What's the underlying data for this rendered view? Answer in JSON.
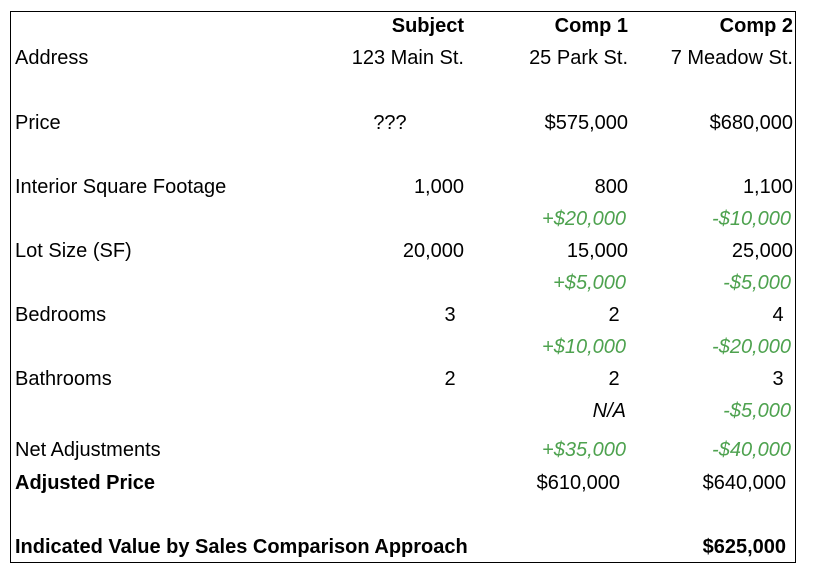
{
  "columns": {
    "subject": "Subject",
    "comp1": "Comp 1",
    "comp2": "Comp 2"
  },
  "address": {
    "label": "Address",
    "subject": "123 Main St.",
    "comp1": "25 Park St.",
    "comp2": "7 Meadow St."
  },
  "price": {
    "label": "Price",
    "subject": "???",
    "comp1": "$575,000",
    "comp2": "$680,000"
  },
  "sqft": {
    "label": "Interior Square Footage",
    "subject": "1,000",
    "comp1": "800",
    "comp2": "1,100",
    "adj1": "+$20,000",
    "adj2": "-$10,000"
  },
  "lot": {
    "label": "Lot Size (SF)",
    "subject": "20,000",
    "comp1": "15,000",
    "comp2": "25,000",
    "adj1": "+$5,000",
    "adj2": "-$5,000"
  },
  "bedrooms": {
    "label": "Bedrooms",
    "subject": "3",
    "comp1": "2",
    "comp2": "4",
    "adj1": "+$10,000",
    "adj2": "-$20,000"
  },
  "bathrooms": {
    "label": "Bathrooms",
    "subject": "2",
    "comp1": "2",
    "comp2": "3",
    "adj1": "N/A",
    "adj2": "-$5,000"
  },
  "net": {
    "label": "Net Adjustments",
    "comp1": "+$35,000",
    "comp2": "-$40,000"
  },
  "adjusted": {
    "label": "Adjusted Price",
    "comp1": "$610,000",
    "comp2": "$640,000"
  },
  "indicated": {
    "label": "Indicated Value by Sales Comparison Approach",
    "value": "$625,000"
  },
  "colors": {
    "adjustment": "#4ea24f",
    "border": "#000000"
  }
}
